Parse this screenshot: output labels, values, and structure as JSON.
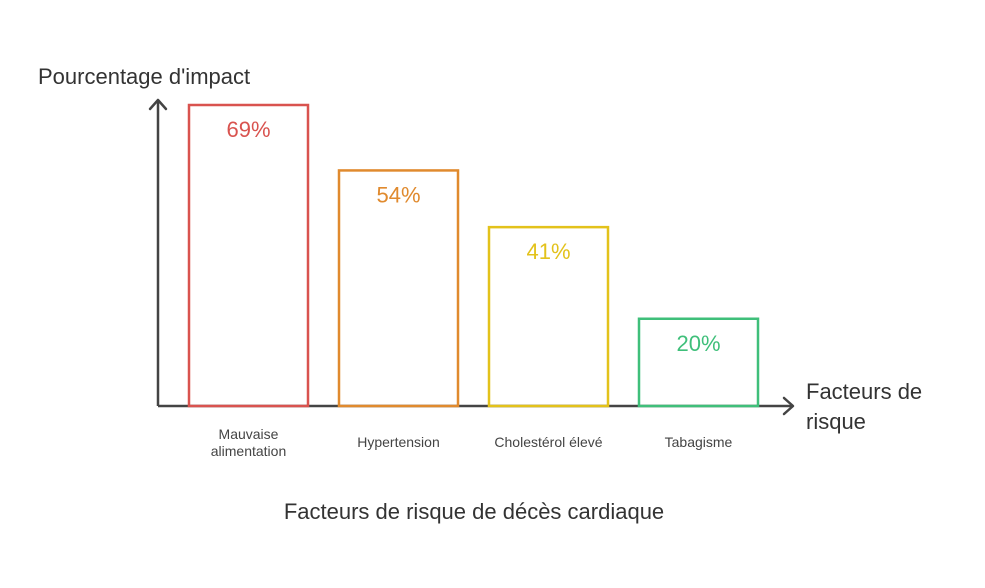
{
  "chart_data": {
    "type": "bar",
    "title": "Facteurs de risque de décès cardiaque",
    "ylabel": "Pourcentage d'impact",
    "xlabel": "Facteurs de risque",
    "categories": [
      [
        "Mauvaise",
        "alimentation"
      ],
      [
        "Hypertension"
      ],
      [
        "Cholestérol élevé"
      ],
      [
        "Tabagisme"
      ]
    ],
    "values": [
      69,
      54,
      41,
      20
    ],
    "value_labels": [
      "69%",
      "54%",
      "41%",
      "20%"
    ],
    "colors": [
      "#d9534f",
      "#e08a2e",
      "#e3c21b",
      "#3fbf7a"
    ],
    "ylim": [
      0,
      69
    ],
    "grid": false
  }
}
